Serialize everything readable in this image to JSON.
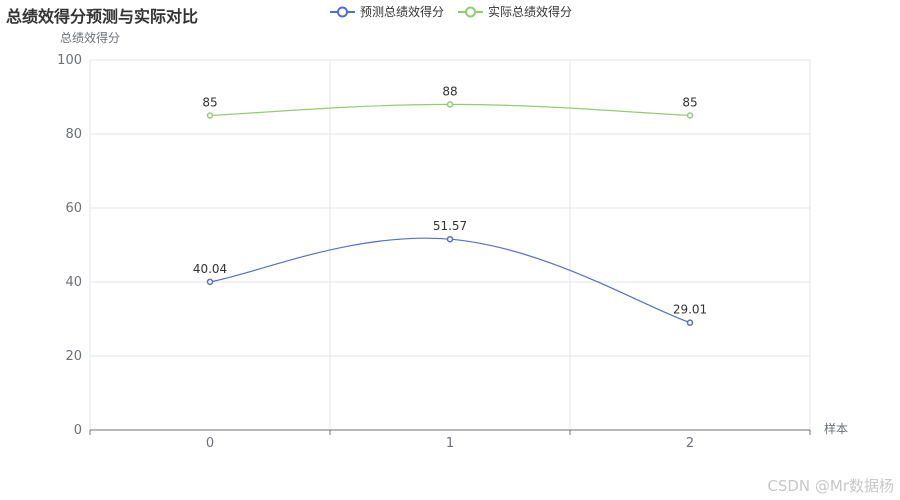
{
  "title": "总绩效得分预测与实际对比",
  "watermark": "CSDN @Mr数据杨",
  "colors": {
    "predicted": "#5470c6",
    "actual": "#91cc75",
    "axis": "#6e7079",
    "grid": "#e0e6f1",
    "text": "#333333"
  },
  "chart_data": {
    "type": "line",
    "title": "总绩效得分预测与实际对比",
    "xlabel": "样本",
    "ylabel": "总绩效得分",
    "categories": [
      "0",
      "1",
      "2"
    ],
    "ylim": [
      0,
      100
    ],
    "yticks": [
      0,
      20,
      40,
      60,
      80,
      100
    ],
    "smooth": true,
    "grid": true,
    "legend_position": "top",
    "series": [
      {
        "name": "预测总绩效得分",
        "values": [
          40.04,
          51.57,
          29.01
        ],
        "labels": [
          "40.04",
          "51.57",
          "29.01"
        ],
        "color": "#5470c6"
      },
      {
        "name": "实际总绩效得分",
        "values": [
          85,
          88,
          85
        ],
        "labels": [
          "85",
          "88",
          "85"
        ],
        "color": "#91cc75"
      }
    ]
  }
}
